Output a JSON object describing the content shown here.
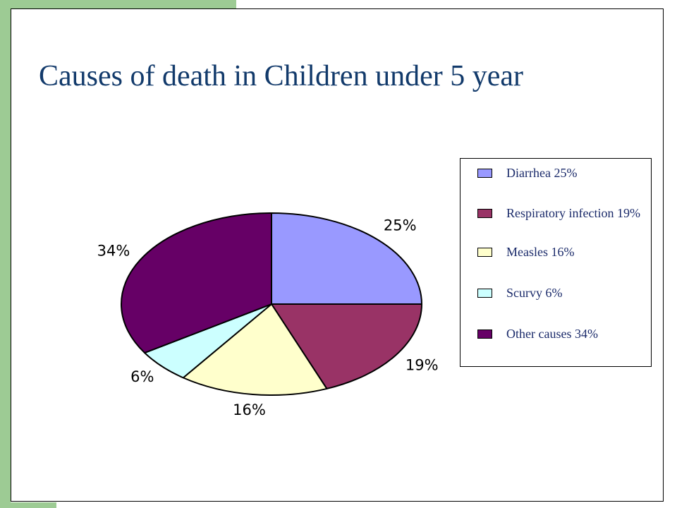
{
  "slide": {
    "title": "Causes of death in Children under 5 year"
  },
  "colors": {
    "accent_green": "#9dcb94",
    "title": "#123a6b",
    "legend_text": "#1a2a6a"
  },
  "chart_data": {
    "type": "pie",
    "title": "",
    "slices": [
      {
        "name": "Diarrhea",
        "value": 25,
        "label": "25%",
        "color": "#9999ff"
      },
      {
        "name": "Respiratory infection",
        "value": 19,
        "label": "19%",
        "color": "#993366"
      },
      {
        "name": "Measles",
        "value": 16,
        "label": "16%",
        "color": "#ffffcc"
      },
      {
        "name": "Scurvy",
        "value": 6,
        "label": "6%",
        "color": "#ccffff"
      },
      {
        "name": "Other causes",
        "value": 34,
        "label": "34%",
        "color": "#660066"
      }
    ],
    "legend": {
      "placement": "right",
      "entries": [
        "Diarrhea 25%",
        "Respiratory infection 19%",
        "Measles 16%",
        "Scurvy 6%",
        "Other causes 34%"
      ]
    }
  }
}
